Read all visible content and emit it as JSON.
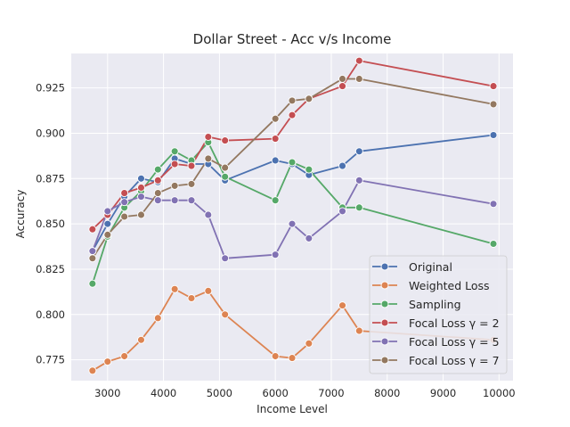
{
  "chart_data": {
    "type": "line",
    "title": "Dollar Street - Acc v/s Income",
    "xlabel": "Income Level",
    "ylabel": "Accuracy",
    "xlim": [
      2350,
      10250
    ],
    "ylim": [
      0.7635,
      0.944
    ],
    "xticks": [
      3000,
      4000,
      5000,
      6000,
      7000,
      8000,
      9000,
      10000
    ],
    "yticks": [
      0.775,
      0.8,
      0.825,
      0.85,
      0.875,
      0.9,
      0.925
    ],
    "xtick_labels": [
      "3000",
      "4000",
      "5000",
      "6000",
      "7000",
      "8000",
      "9000",
      "10000"
    ],
    "ytick_labels": [
      "0.775",
      "0.800",
      "0.825",
      "0.850",
      "0.875",
      "0.900",
      "0.925"
    ],
    "grid": true,
    "legend_position": "lower-right",
    "x": [
      2730,
      3000,
      3300,
      3600,
      3900,
      4200,
      4500,
      4800,
      5100,
      6000,
      6300,
      6600,
      7200,
      7500,
      9900
    ],
    "series": [
      {
        "name": "Original",
        "color": "#4c72b0",
        "values": [
          0.835,
          0.85,
          0.865,
          0.875,
          0.873,
          0.886,
          0.883,
          0.883,
          0.874,
          0.885,
          0.883,
          0.877,
          0.882,
          0.89,
          0.899
        ]
      },
      {
        "name": "Weighted Loss",
        "color": "#dd8452",
        "values": [
          0.769,
          0.774,
          0.777,
          0.786,
          0.798,
          0.814,
          0.809,
          0.813,
          0.8,
          0.777,
          0.776,
          0.784,
          0.805,
          0.791,
          0.786
        ]
      },
      {
        "name": "Sampling",
        "color": "#55a868",
        "values": [
          0.817,
          0.843,
          0.859,
          0.868,
          0.88,
          0.89,
          0.885,
          0.895,
          0.876,
          0.863,
          0.884,
          0.88,
          0.859,
          0.859,
          0.839
        ]
      },
      {
        "name": "Focal Loss γ = 2",
        "color": "#c44e52",
        "values": [
          0.847,
          0.855,
          0.867,
          0.87,
          0.874,
          0.883,
          0.882,
          0.898,
          0.896,
          0.897,
          0.91,
          0.919,
          0.926,
          0.94,
          0.926
        ]
      },
      {
        "name": "Focal Loss γ = 5",
        "color": "#8172b3",
        "values": [
          0.835,
          0.857,
          0.862,
          0.865,
          0.863,
          0.863,
          0.863,
          0.855,
          0.831,
          0.833,
          0.85,
          0.842,
          0.857,
          0.874,
          0.861
        ]
      },
      {
        "name": "Focal Loss γ = 7",
        "color": "#937860",
        "values": [
          0.831,
          0.844,
          0.854,
          0.855,
          0.867,
          0.871,
          0.872,
          0.886,
          0.881,
          0.908,
          0.918,
          0.919,
          0.93,
          0.93,
          0.916
        ]
      }
    ]
  }
}
